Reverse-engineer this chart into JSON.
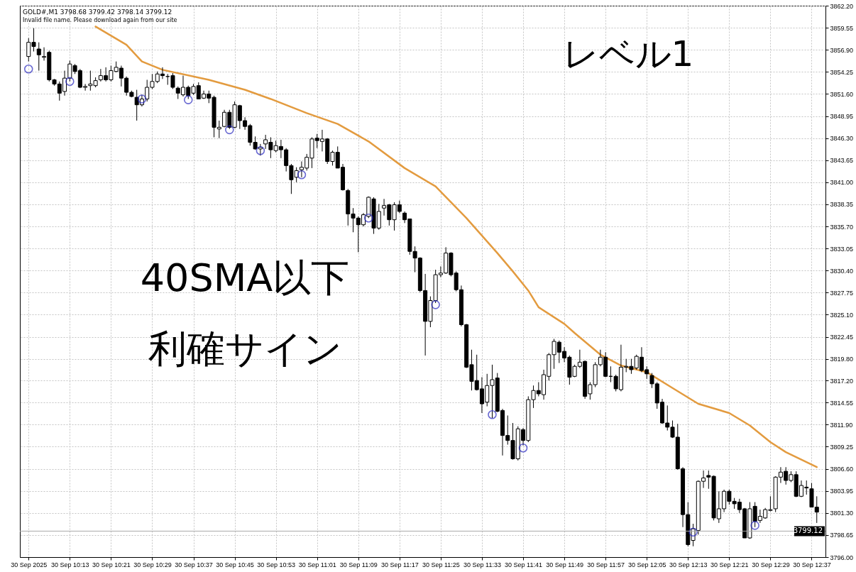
{
  "chart_data": {
    "type": "candlestick",
    "title": "レベル1",
    "annotations": [
      "GOLD#,M1  3798.68 3799.42 3798.14 3799.12",
      "Invalid file name. Please download again from our site",
      "40SMA以下",
      "利確サイン"
    ],
    "x": [
      "2025-09-30T10:05",
      "2025-09-30T10:06",
      "2025-09-30T10:07",
      "2025-09-30T10:08",
      "2025-09-30T10:09",
      "2025-09-30T10:10",
      "2025-09-30T10:11",
      "2025-09-30T10:12",
      "2025-09-30T10:13",
      "2025-09-30T10:14",
      "2025-09-30T10:15",
      "2025-09-30T10:16",
      "2025-09-30T10:17",
      "2025-09-30T10:18",
      "2025-09-30T10:19",
      "2025-09-30T10:20",
      "2025-09-30T10:21",
      "2025-09-30T10:22",
      "2025-09-30T10:23",
      "2025-09-30T10:24",
      "2025-09-30T10:25",
      "2025-09-30T10:26",
      "2025-09-30T10:27",
      "2025-09-30T10:28",
      "2025-09-30T10:29",
      "2025-09-30T10:30",
      "2025-09-30T10:31",
      "2025-09-30T10:32",
      "2025-09-30T10:33",
      "2025-09-30T10:34",
      "2025-09-30T10:35",
      "2025-09-30T10:36",
      "2025-09-30T10:37",
      "2025-09-30T10:38",
      "2025-09-30T10:39",
      "2025-09-30T10:40",
      "2025-09-30T10:41",
      "2025-09-30T10:42",
      "2025-09-30T10:43",
      "2025-09-30T10:44",
      "2025-09-30T10:45",
      "2025-09-30T10:46",
      "2025-09-30T10:47",
      "2025-09-30T10:48",
      "2025-09-30T10:49",
      "2025-09-30T10:50",
      "2025-09-30T10:51",
      "2025-09-30T10:52",
      "2025-09-30T10:53",
      "2025-09-30T10:54",
      "2025-09-30T10:55",
      "2025-09-30T10:56",
      "2025-09-30T10:57",
      "2025-09-30T10:58",
      "2025-09-30T10:59",
      "2025-09-30T11:00",
      "2025-09-30T11:01",
      "2025-09-30T11:02",
      "2025-09-30T11:03",
      "2025-09-30T11:04",
      "2025-09-30T11:05",
      "2025-09-30T11:06",
      "2025-09-30T11:07",
      "2025-09-30T11:08",
      "2025-09-30T11:09",
      "2025-09-30T11:10",
      "2025-09-30T11:11",
      "2025-09-30T11:12",
      "2025-09-30T11:13",
      "2025-09-30T11:14",
      "2025-09-30T11:15",
      "2025-09-30T11:16",
      "2025-09-30T11:17",
      "2025-09-30T11:18",
      "2025-09-30T11:19",
      "2025-09-30T11:20",
      "2025-09-30T11:21",
      "2025-09-30T11:22",
      "2025-09-30T11:23",
      "2025-09-30T11:24",
      "2025-09-30T11:25",
      "2025-09-30T11:26",
      "2025-09-30T11:27",
      "2025-09-30T11:28",
      "2025-09-30T11:29",
      "2025-09-30T11:30",
      "2025-09-30T11:31",
      "2025-09-30T11:32",
      "2025-09-30T11:33",
      "2025-09-30T11:34",
      "2025-09-30T11:35",
      "2025-09-30T11:36",
      "2025-09-30T11:37",
      "2025-09-30T11:38",
      "2025-09-30T11:39",
      "2025-09-30T11:40",
      "2025-09-30T11:41",
      "2025-09-30T11:42",
      "2025-09-30T11:43",
      "2025-09-30T11:44",
      "2025-09-30T11:45",
      "2025-09-30T11:46",
      "2025-09-30T11:47",
      "2025-09-30T11:48",
      "2025-09-30T11:49",
      "2025-09-30T11:50",
      "2025-09-30T11:51",
      "2025-09-30T11:52",
      "2025-09-30T11:53",
      "2025-09-30T11:54",
      "2025-09-30T11:55",
      "2025-09-30T11:56",
      "2025-09-30T11:57",
      "2025-09-30T11:58",
      "2025-09-30T11:59",
      "2025-09-30T12:00",
      "2025-09-30T12:01",
      "2025-09-30T12:02",
      "2025-09-30T12:03",
      "2025-09-30T12:04",
      "2025-09-30T12:05",
      "2025-09-30T12:06",
      "2025-09-30T12:07",
      "2025-09-30T12:08",
      "2025-09-30T12:09",
      "2025-09-30T12:10",
      "2025-09-30T12:11",
      "2025-09-30T12:12",
      "2025-09-30T12:13",
      "2025-09-30T12:14",
      "2025-09-30T12:15",
      "2025-09-30T12:16",
      "2025-09-30T12:17",
      "2025-09-30T12:18",
      "2025-09-30T12:19",
      "2025-09-30T12:20",
      "2025-09-30T12:21",
      "2025-09-30T12:22",
      "2025-09-30T12:23",
      "2025-09-30T12:24",
      "2025-09-30T12:25",
      "2025-09-30T12:26",
      "2025-09-30T12:27",
      "2025-09-30T12:28",
      "2025-09-30T12:29",
      "2025-09-30T12:30",
      "2025-09-30T12:31",
      "2025-09-30T12:32",
      "2025-09-30T12:33",
      "2025-09-30T12:34",
      "2025-09-30T12:35",
      "2025-09-30T12:36",
      "2025-09-30T12:37",
      "2025-09-30T12:38"
    ],
    "ohlc": [
      [
        3856.1,
        3858.3,
        3855.5,
        3857.8
      ],
      [
        3857.8,
        3859.5,
        3856.7,
        3857.3
      ],
      [
        3857.0,
        3857.8,
        3854.4,
        3856.3
      ],
      [
        3856.0,
        3857.2,
        3855.6,
        3856.1
      ],
      [
        3856.6,
        3856.8,
        3853.1,
        3853.3
      ],
      [
        3853.3,
        3853.4,
        3852.6,
        3852.8
      ],
      [
        3852.8,
        3853.1,
        3850.8,
        3851.7
      ],
      [
        3851.9,
        3854.4,
        3851.4,
        3853.5
      ],
      [
        3853.5,
        3855.6,
        3853.1,
        3855.2
      ],
      [
        3855.0,
        3855.2,
        3854.0,
        3854.3
      ],
      [
        3854.4,
        3854.6,
        3852.3,
        3852.4
      ],
      [
        3852.4,
        3852.8,
        3852.0,
        3852.5
      ],
      [
        3852.6,
        3854.4,
        3852.0,
        3852.8
      ],
      [
        3852.6,
        3853.6,
        3852.4,
        3853.2
      ],
      [
        3853.3,
        3854.6,
        3853.1,
        3853.8
      ],
      [
        3853.8,
        3854.8,
        3853.1,
        3853.3
      ],
      [
        3853.3,
        3855.0,
        3853.1,
        3854.4
      ],
      [
        3854.3,
        3855.5,
        3854.2,
        3854.8
      ],
      [
        3854.7,
        3855.0,
        3852.5,
        3853.5
      ],
      [
        3853.5,
        3853.7,
        3851.4,
        3851.8
      ],
      [
        3851.8,
        3852.0,
        3851.2,
        3851.3
      ],
      [
        3851.2,
        3852.1,
        3848.4,
        3850.3
      ],
      [
        3850.3,
        3851.5,
        3850.1,
        3851.0
      ],
      [
        3851.0,
        3853.3,
        3850.7,
        3852.4
      ],
      [
        3852.4,
        3854.0,
        3852.2,
        3853.1
      ],
      [
        3853.1,
        3854.3,
        3852.9,
        3854.0
      ],
      [
        3854.0,
        3854.8,
        3853.4,
        3853.8
      ],
      [
        3853.7,
        3854.0,
        3852.7,
        3853.7
      ],
      [
        3853.8,
        3854.1,
        3852.2,
        3852.4
      ],
      [
        3852.3,
        3852.5,
        3851.0,
        3851.7
      ],
      [
        3851.5,
        3853.8,
        3851.3,
        3852.4
      ],
      [
        3852.4,
        3852.6,
        3851.0,
        3851.4
      ],
      [
        3851.7,
        3852.8,
        3851.5,
        3852.5
      ],
      [
        3852.6,
        3853.0,
        3851.0,
        3851.0
      ],
      [
        3851.1,
        3852.0,
        3851.0,
        3851.6
      ],
      [
        3851.6,
        3852.0,
        3850.5,
        3851.1
      ],
      [
        3851.2,
        3851.4,
        3846.4,
        3847.6
      ],
      [
        3847.4,
        3848.4,
        3846.3,
        3847.6
      ],
      [
        3847.7,
        3849.7,
        3847.6,
        3849.4
      ],
      [
        3849.4,
        3849.7,
        3847.4,
        3847.6
      ],
      [
        3847.6,
        3850.7,
        3847.5,
        3850.3
      ],
      [
        3850.2,
        3850.3,
        3847.4,
        3848.4
      ],
      [
        3848.4,
        3848.8,
        3847.3,
        3847.7
      ],
      [
        3847.8,
        3848.0,
        3845.4,
        3845.8
      ],
      [
        3845.8,
        3846.5,
        3844.9,
        3845.0
      ],
      [
        3845.0,
        3845.6,
        3844.2,
        3845.2
      ],
      [
        3845.6,
        3846.7,
        3845.0,
        3846.1
      ],
      [
        3845.8,
        3846.4,
        3843.9,
        3844.9
      ],
      [
        3844.8,
        3846.0,
        3844.6,
        3845.4
      ],
      [
        3845.3,
        3846.1,
        3843.9,
        3844.9
      ],
      [
        3844.9,
        3845.1,
        3842.3,
        3843.0
      ],
      [
        3843.0,
        3843.2,
        3839.6,
        3841.3
      ],
      [
        3841.6,
        3842.8,
        3841.0,
        3842.4
      ],
      [
        3842.5,
        3843.5,
        3841.6,
        3842.8
      ],
      [
        3842.7,
        3844.4,
        3842.4,
        3844.0
      ],
      [
        3843.9,
        3846.4,
        3842.7,
        3846.2
      ],
      [
        3846.3,
        3846.8,
        3845.1,
        3846.0
      ],
      [
        3845.9,
        3847.3,
        3844.7,
        3846.2
      ],
      [
        3846.2,
        3846.3,
        3843.2,
        3843.5
      ],
      [
        3843.5,
        3844.8,
        3843.0,
        3844.6
      ],
      [
        3844.6,
        3845.3,
        3842.7,
        3842.7
      ],
      [
        3842.8,
        3843.2,
        3840.0,
        3840.1
      ],
      [
        3840.0,
        3840.2,
        3835.8,
        3837.2
      ],
      [
        3837.2,
        3837.9,
        3835.0,
        3836.7
      ],
      [
        3836.7,
        3836.9,
        3832.6,
        3835.9
      ],
      [
        3835.9,
        3837.3,
        3835.7,
        3837.1
      ],
      [
        3836.9,
        3839.3,
        3836.7,
        3839.2
      ],
      [
        3839.0,
        3839.2,
        3834.8,
        3835.5
      ],
      [
        3835.5,
        3838.4,
        3835.3,
        3837.5
      ],
      [
        3837.9,
        3839.0,
        3837.0,
        3838.2
      ],
      [
        3838.3,
        3838.4,
        3835.8,
        3836.5
      ],
      [
        3836.5,
        3838.6,
        3835.2,
        3838.3
      ],
      [
        3838.3,
        3838.8,
        3837.3,
        3837.5
      ],
      [
        3837.3,
        3837.5,
        3836.1,
        3836.5
      ],
      [
        3836.6,
        3836.6,
        3832.3,
        3832.7
      ],
      [
        3832.7,
        3833.3,
        3830.2,
        3831.9
      ],
      [
        3831.9,
        3832.0,
        3827.8,
        3828.0
      ],
      [
        3828.0,
        3830.0,
        3820.2,
        3824.3
      ],
      [
        3824.3,
        3827.3,
        3823.6,
        3826.8
      ],
      [
        3826.8,
        3830.5,
        3826.5,
        3829.9
      ],
      [
        3829.9,
        3830.9,
        3829.6,
        3830.1
      ],
      [
        3830.1,
        3833.2,
        3830.0,
        3832.5
      ],
      [
        3832.5,
        3832.6,
        3829.7,
        3829.9
      ],
      [
        3830.1,
        3830.3,
        3827.9,
        3828.1
      ],
      [
        3828.1,
        3828.6,
        3823.7,
        3823.9
      ],
      [
        3823.9,
        3824.0,
        3818.7,
        3818.8
      ],
      [
        3819.1,
        3820.9,
        3816.0,
        3817.1
      ],
      [
        3817.2,
        3820.3,
        3816.0,
        3816.1
      ],
      [
        3816.2,
        3817.6,
        3813.3,
        3814.4
      ],
      [
        3814.6,
        3818.0,
        3814.1,
        3816.6
      ],
      [
        3816.6,
        3819.1,
        3812.7,
        3817.3
      ],
      [
        3817.5,
        3818.1,
        3813.4,
        3813.5
      ],
      [
        3813.6,
        3813.8,
        3808.2,
        3810.6
      ],
      [
        3810.6,
        3813.0,
        3809.5,
        3810.0
      ],
      [
        3810.0,
        3812.1,
        3807.7,
        3807.8
      ],
      [
        3807.8,
        3811.7,
        3807.6,
        3811.4
      ],
      [
        3811.3,
        3811.5,
        3809.4,
        3810.0
      ],
      [
        3810.0,
        3815.3,
        3809.8,
        3814.9
      ],
      [
        3814.9,
        3816.6,
        3813.9,
        3816.0
      ],
      [
        3816.0,
        3817.0,
        3815.3,
        3815.6
      ],
      [
        3815.5,
        3818.5,
        3814.9,
        3817.9
      ],
      [
        3817.7,
        3820.5,
        3817.2,
        3820.3
      ],
      [
        3820.3,
        3822.2,
        3818.6,
        3821.9
      ],
      [
        3821.8,
        3822.0,
        3819.3,
        3820.6
      ],
      [
        3820.7,
        3821.2,
        3819.4,
        3819.9
      ],
      [
        3820.0,
        3820.2,
        3816.7,
        3817.6
      ],
      [
        3817.7,
        3819.1,
        3817.6,
        3818.9
      ],
      [
        3818.9,
        3820.9,
        3818.7,
        3819.4
      ],
      [
        3819.5,
        3819.6,
        3815.0,
        3815.3
      ],
      [
        3815.6,
        3817.0,
        3814.9,
        3816.7
      ],
      [
        3816.7,
        3819.4,
        3816.4,
        3819.1
      ],
      [
        3819.1,
        3820.9,
        3818.9,
        3820.0
      ],
      [
        3820.0,
        3820.6,
        3817.6,
        3817.7
      ],
      [
        3817.7,
        3818.9,
        3817.0,
        3817.7
      ],
      [
        3817.7,
        3817.9,
        3815.9,
        3816.2
      ],
      [
        3816.1,
        3821.5,
        3815.9,
        3818.8
      ],
      [
        3818.8,
        3819.8,
        3818.2,
        3818.9
      ],
      [
        3818.9,
        3819.8,
        3818.0,
        3818.5
      ],
      [
        3818.7,
        3820.3,
        3818.5,
        3820.1
      ],
      [
        3820.0,
        3821.2,
        3818.2,
        3818.4
      ],
      [
        3818.5,
        3818.9,
        3817.4,
        3818.0
      ],
      [
        3817.8,
        3818.1,
        3816.3,
        3816.8
      ],
      [
        3816.8,
        3817.0,
        3813.8,
        3814.5
      ],
      [
        3814.6,
        3815.0,
        3812.0,
        3812.1
      ],
      [
        3812.1,
        3814.2,
        3811.2,
        3811.6
      ],
      [
        3811.6,
        3812.4,
        3810.3,
        3810.4
      ],
      [
        3810.4,
        3812.0,
        3806.5,
        3806.6
      ],
      [
        3806.6,
        3806.8,
        3799.6,
        3801.1
      ],
      [
        3801.1,
        3802.6,
        3797.3,
        3797.5
      ],
      [
        3798.0,
        3800.0,
        3797.3,
        3799.4
      ],
      [
        3799.2,
        3805.2,
        3798.7,
        3805.1
      ],
      [
        3805.1,
        3806.4,
        3804.3,
        3805.5
      ],
      [
        3805.8,
        3806.4,
        3804.2,
        3805.6
      ],
      [
        3805.7,
        3805.8,
        3800.4,
        3800.7
      ],
      [
        3800.6,
        3803.9,
        3800.1,
        3801.8
      ],
      [
        3801.8,
        3804.1,
        3801.4,
        3803.9
      ],
      [
        3803.9,
        3804.1,
        3802.3,
        3802.7
      ],
      [
        3802.7,
        3803.1,
        3801.8,
        3802.4
      ],
      [
        3802.6,
        3803.0,
        3801.3,
        3801.7
      ],
      [
        3801.8,
        3801.9,
        3798.3,
        3798.3
      ],
      [
        3798.3,
        3802.6,
        3798.2,
        3801.8
      ],
      [
        3802.1,
        3802.6,
        3799.6,
        3800.3
      ],
      [
        3800.4,
        3801.7,
        3800.1,
        3800.9
      ],
      [
        3800.7,
        3801.9,
        3800.6,
        3801.7
      ],
      [
        3801.6,
        3803.3,
        3801.5,
        3801.7
      ],
      [
        3801.8,
        3805.7,
        3801.4,
        3805.6
      ],
      [
        3805.6,
        3806.8,
        3804.9,
        3806.2
      ],
      [
        3806.3,
        3806.8,
        3804.7,
        3805.2
      ],
      [
        3805.2,
        3806.3,
        3805.0,
        3805.9
      ],
      [
        3805.9,
        3806.3,
        3803.2,
        3803.3
      ],
      [
        3803.3,
        3805.2,
        3803.2,
        3804.6
      ],
      [
        3804.4,
        3805.2,
        3803.5,
        3804.3
      ],
      [
        3804.2,
        3804.9,
        3802.0,
        3802.0
      ],
      [
        3802.0,
        3803.3,
        3800.1,
        3801.4
      ]
    ],
    "series": [
      {
        "type": "line",
        "color": "#e39b3f",
        "x": [
          "2025-09-30T10:18",
          "2025-09-30T10:24",
          "2025-09-30T10:27",
          "2025-09-30T10:31",
          "2025-09-30T10:40",
          "2025-09-30T10:47",
          "2025-09-30T10:52",
          "2025-09-30T10:59",
          "2025-09-30T11:05",
          "2025-09-30T11:11",
          "2025-09-30T11:18",
          "2025-09-30T11:24",
          "2025-09-30T11:30",
          "2025-09-30T11:36",
          "2025-09-30T11:39",
          "2025-09-30T11:42",
          "2025-09-30T11:44",
          "2025-09-30T11:49",
          "2025-09-30T11:51",
          "2025-09-30T11:56",
          "2025-09-30T12:00",
          "2025-09-30T12:05",
          "2025-09-30T12:10",
          "2025-09-30T12:15",
          "2025-09-30T12:21",
          "2025-09-30T12:25",
          "2025-09-30T12:29",
          "2025-09-30T12:32",
          "2025-09-30T12:38"
        ],
        "values": [
          3859.7,
          3857.5,
          3855.5,
          3854.5,
          3853.3,
          3852.1,
          3851.0,
          3849.3,
          3848.0,
          3845.9,
          3842.7,
          3840.5,
          3836.7,
          3832.5,
          3830.3,
          3828.0,
          3826.0,
          3824.0,
          3822.9,
          3820.3,
          3819.0,
          3818.2,
          3816.3,
          3814.4,
          3813.3,
          3811.8,
          3809.8,
          3808.6,
          3806.8
        ]
      },
      {
        "type": "scatter",
        "marker": "circle",
        "color": "#2b2bbf",
        "x": [
          "2025-09-30T10:05",
          "2025-09-30T10:13",
          "2025-09-30T10:27",
          "2025-09-30T10:36",
          "2025-09-30T10:44",
          "2025-09-30T10:50",
          "2025-09-30T10:58",
          "2025-09-30T11:11",
          "2025-09-30T11:24",
          "2025-09-30T11:35",
          "2025-09-30T11:41",
          "2025-09-30T12:14",
          "2025-09-30T12:26"
        ],
        "values": [
          3854.6,
          3853.1,
          3851.0,
          3850.9,
          3847.3,
          3844.8,
          3841.9,
          3836.7,
          3826.3,
          3813.1,
          3809.1,
          3799.0,
          3799.8
        ]
      }
    ],
    "xlim": [
      "2025-09-30T10:04",
      "2025-09-30T12:39"
    ],
    "xticks": [
      {
        "value": "2025-09-30T10:05",
        "label": "30 Sep 2025"
      },
      {
        "value": "2025-09-30T10:13",
        "label": "30 Sep 10:13"
      },
      {
        "value": "2025-09-30T10:21",
        "label": "30 Sep 10:21"
      },
      {
        "value": "2025-09-30T10:29",
        "label": "30 Sep 10:29"
      },
      {
        "value": "2025-09-30T10:37",
        "label": "30 Sep 10:37"
      },
      {
        "value": "2025-09-30T10:45",
        "label": "30 Sep 10:45"
      },
      {
        "value": "2025-09-30T10:53",
        "label": "30 Sep 10:53"
      },
      {
        "value": "2025-09-30T11:01",
        "label": "30 Sep 11:01"
      },
      {
        "value": "2025-09-30T11:09",
        "label": "30 Sep 11:09"
      },
      {
        "value": "2025-09-30T11:17",
        "label": "30 Sep 11:17"
      },
      {
        "value": "2025-09-30T11:25",
        "label": "30 Sep 11:25"
      },
      {
        "value": "2025-09-30T11:33",
        "label": "30 Sep 11:33"
      },
      {
        "value": "2025-09-30T11:41",
        "label": "30 Sep 11:41"
      },
      {
        "value": "2025-09-30T11:49",
        "label": "30 Sep 11:49"
      },
      {
        "value": "2025-09-30T11:57",
        "label": "30 Sep 11:57"
      },
      {
        "value": "2025-09-30T12:05",
        "label": "30 Sep 12:05"
      },
      {
        "value": "2025-09-30T12:13",
        "label": "30 Sep 12:13"
      },
      {
        "value": "2025-09-30T12:21",
        "label": "30 Sep 12:21"
      },
      {
        "value": "2025-09-30T12:29",
        "label": "30 Sep 12:29"
      },
      {
        "value": "2025-09-30T12:37",
        "label": "30 Sep 12:37"
      }
    ],
    "ylim": [
      3796.0,
      3862.2
    ],
    "yticks": [
      {
        "value": 3862.2,
        "label": "3862.20"
      },
      {
        "value": 3859.55,
        "label": "3859.55"
      },
      {
        "value": 3856.9,
        "label": "3856.90"
      },
      {
        "value": 3854.25,
        "label": "3854.25"
      },
      {
        "value": 3851.6,
        "label": "3851.60"
      },
      {
        "value": 3848.95,
        "label": "3848.95"
      },
      {
        "value": 3846.3,
        "label": "3846.30"
      },
      {
        "value": 3843.65,
        "label": "3843.65"
      },
      {
        "value": 3841.0,
        "label": "3841.00"
      },
      {
        "value": 3838.35,
        "label": "3838.35"
      },
      {
        "value": 3835.7,
        "label": "3835.70"
      },
      {
        "value": 3833.05,
        "label": "3833.05"
      },
      {
        "value": 3830.4,
        "label": "3830.40"
      },
      {
        "value": 3827.75,
        "label": "3827.75"
      },
      {
        "value": 3825.1,
        "label": "3825.10"
      },
      {
        "value": 3822.45,
        "label": "3822.45"
      },
      {
        "value": 3819.8,
        "label": "3819.80"
      },
      {
        "value": 3817.2,
        "label": "3817.20"
      },
      {
        "value": 3814.55,
        "label": "3814.55"
      },
      {
        "value": 3811.9,
        "label": "3811.90"
      },
      {
        "value": 3809.25,
        "label": "3809.25"
      },
      {
        "value": 3806.6,
        "label": "3806.60"
      },
      {
        "value": 3803.95,
        "label": "3803.95"
      },
      {
        "value": 3801.3,
        "label": "3801.30"
      },
      {
        "value": 3798.65,
        "label": "3798.65"
      },
      {
        "value": 3796.0,
        "label": "3796.00"
      }
    ],
    "grid": true,
    "ref_lines": [
      {
        "axis": "y",
        "value": 3799.12,
        "label": "3799.12",
        "color": "#a8a8a8"
      }
    ]
  }
}
